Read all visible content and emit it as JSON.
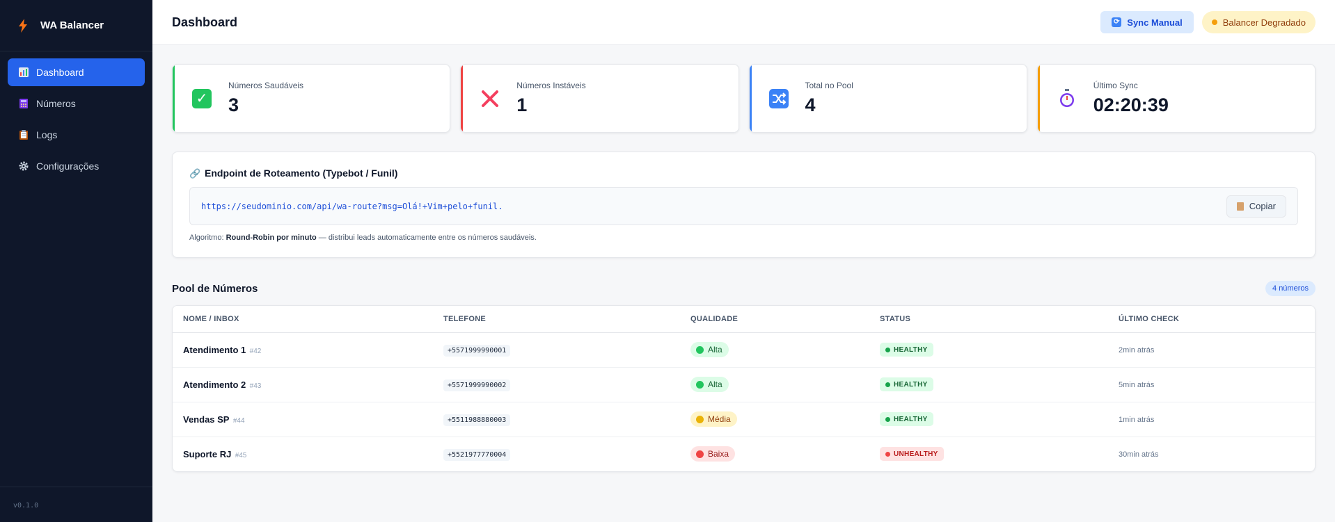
{
  "sidebar": {
    "brand": "WA Balancer",
    "items": [
      {
        "label": "Dashboard",
        "icon": "bar-chart-icon",
        "active": true
      },
      {
        "label": "Números",
        "icon": "abacus-icon",
        "active": false
      },
      {
        "label": "Logs",
        "icon": "clipboard-icon",
        "active": false
      },
      {
        "label": "Configurações",
        "icon": "gear-icon",
        "active": false
      }
    ],
    "version": "v0.1.0"
  },
  "header": {
    "title": "Dashboard",
    "sync_button": "Sync Manual",
    "status_badge": "Balancer Degradado"
  },
  "stats": [
    {
      "label": "Números Saudáveis",
      "value": "3",
      "icon": "check-icon",
      "accent": "#22c55e"
    },
    {
      "label": "Números Instáveis",
      "value": "1",
      "icon": "cross-icon",
      "accent": "#ef4444"
    },
    {
      "label": "Total no Pool",
      "value": "4",
      "icon": "shuffle-icon",
      "accent": "#3b82f6"
    },
    {
      "label": "Último Sync",
      "value": "02:20:39",
      "icon": "stopwatch-icon",
      "accent": "#f59e0b"
    }
  ],
  "endpoint": {
    "title": "Endpoint de Roteamento (Typebot / Funil)",
    "url": "https://seudominio.com/api/wa-route?msg=Olá!+Vim+pelo+funil.",
    "copy_button": "Copiar",
    "algo_prefix": "Algoritmo:",
    "algo_name": "Round-Robin por minuto",
    "algo_suffix": "— distribui leads automaticamente entre os números saudáveis."
  },
  "pool": {
    "title": "Pool de Números",
    "count": "4 números",
    "columns": [
      "NOME / INBOX",
      "TELEFONE",
      "QUALIDADE",
      "STATUS",
      "ÚLTIMO CHECK"
    ],
    "rows": [
      {
        "name": "Atendimento 1",
        "id": "#42",
        "phone": "+5571999990001",
        "quality": "Alta",
        "status": "HEALTHY",
        "last_check": "2min atrás"
      },
      {
        "name": "Atendimento 2",
        "id": "#43",
        "phone": "+5571999990002",
        "quality": "Alta",
        "status": "HEALTHY",
        "last_check": "5min atrás"
      },
      {
        "name": "Vendas SP",
        "id": "#44",
        "phone": "+5511988880003",
        "quality": "Média",
        "status": "HEALTHY",
        "last_check": "1min atrás"
      },
      {
        "name": "Suporte RJ",
        "id": "#45",
        "phone": "+5521977770004",
        "quality": "Baixa",
        "status": "UNHEALTHY",
        "last_check": "30min atrás"
      }
    ]
  }
}
